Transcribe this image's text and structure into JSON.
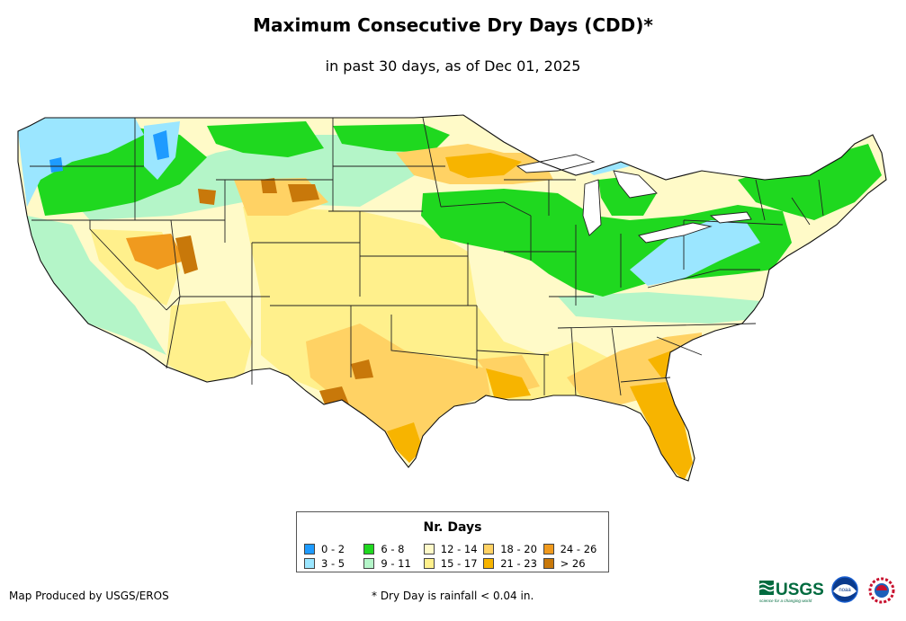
{
  "title": "Maximum Consecutive Dry Days (CDD)*",
  "subtitle": "in past 30 days, as of Dec 01, 2025",
  "legend": {
    "title": "Nr. Days",
    "items": [
      {
        "label": "0 - 2",
        "color": "#1e9bff"
      },
      {
        "label": "3 - 5",
        "color": "#9be6ff"
      },
      {
        "label": "6 - 8",
        "color": "#1fd81f"
      },
      {
        "label": "9 - 11",
        "color": "#b4f5c8"
      },
      {
        "label": "12 - 14",
        "color": "#fffac8"
      },
      {
        "label": "15 - 17",
        "color": "#fff08c"
      },
      {
        "label": "18 - 20",
        "color": "#ffd264"
      },
      {
        "label": "21 - 23",
        "color": "#f7b400"
      },
      {
        "label": "24 - 26",
        "color": "#f09a1e"
      },
      {
        "label": "> 26",
        "color": "#c8780a"
      }
    ]
  },
  "credit": "Map Produced by USGS/EROS",
  "footnote": "* Dry Day is rainfall < 0.04 in.",
  "logos": {
    "usgs": "USGS",
    "usgs_tagline": "science for a changing world",
    "noaa": "noaa"
  }
}
